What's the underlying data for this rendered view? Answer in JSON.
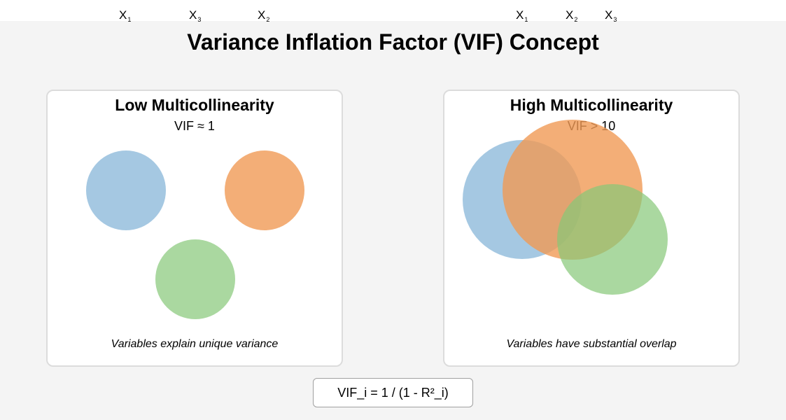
{
  "title": "Variance Inflation Factor (VIF) Concept",
  "variable_labels": {
    "left": [
      {
        "base": "X",
        "sub": "1"
      },
      {
        "base": "X",
        "sub": "3"
      },
      {
        "base": "X",
        "sub": "2"
      }
    ],
    "right": [
      {
        "base": "X",
        "sub": "1"
      },
      {
        "base": "X",
        "sub": "2"
      },
      {
        "base": "X",
        "sub": "3"
      }
    ]
  },
  "panels": {
    "low": {
      "title": "Low Multicollinearity",
      "subtitle": "VIF ≈ 1",
      "caption": "Variables explain unique variance"
    },
    "high": {
      "title": "High Multicollinearity",
      "subtitle": "VIF > 10",
      "caption": "Variables have substantial overlap"
    }
  },
  "formula": "VIF_i = 1 / (1 - R²_i)",
  "colors": {
    "x1": "#7fb0d6",
    "x2": "#f09a55",
    "x3": "#86c878"
  }
}
